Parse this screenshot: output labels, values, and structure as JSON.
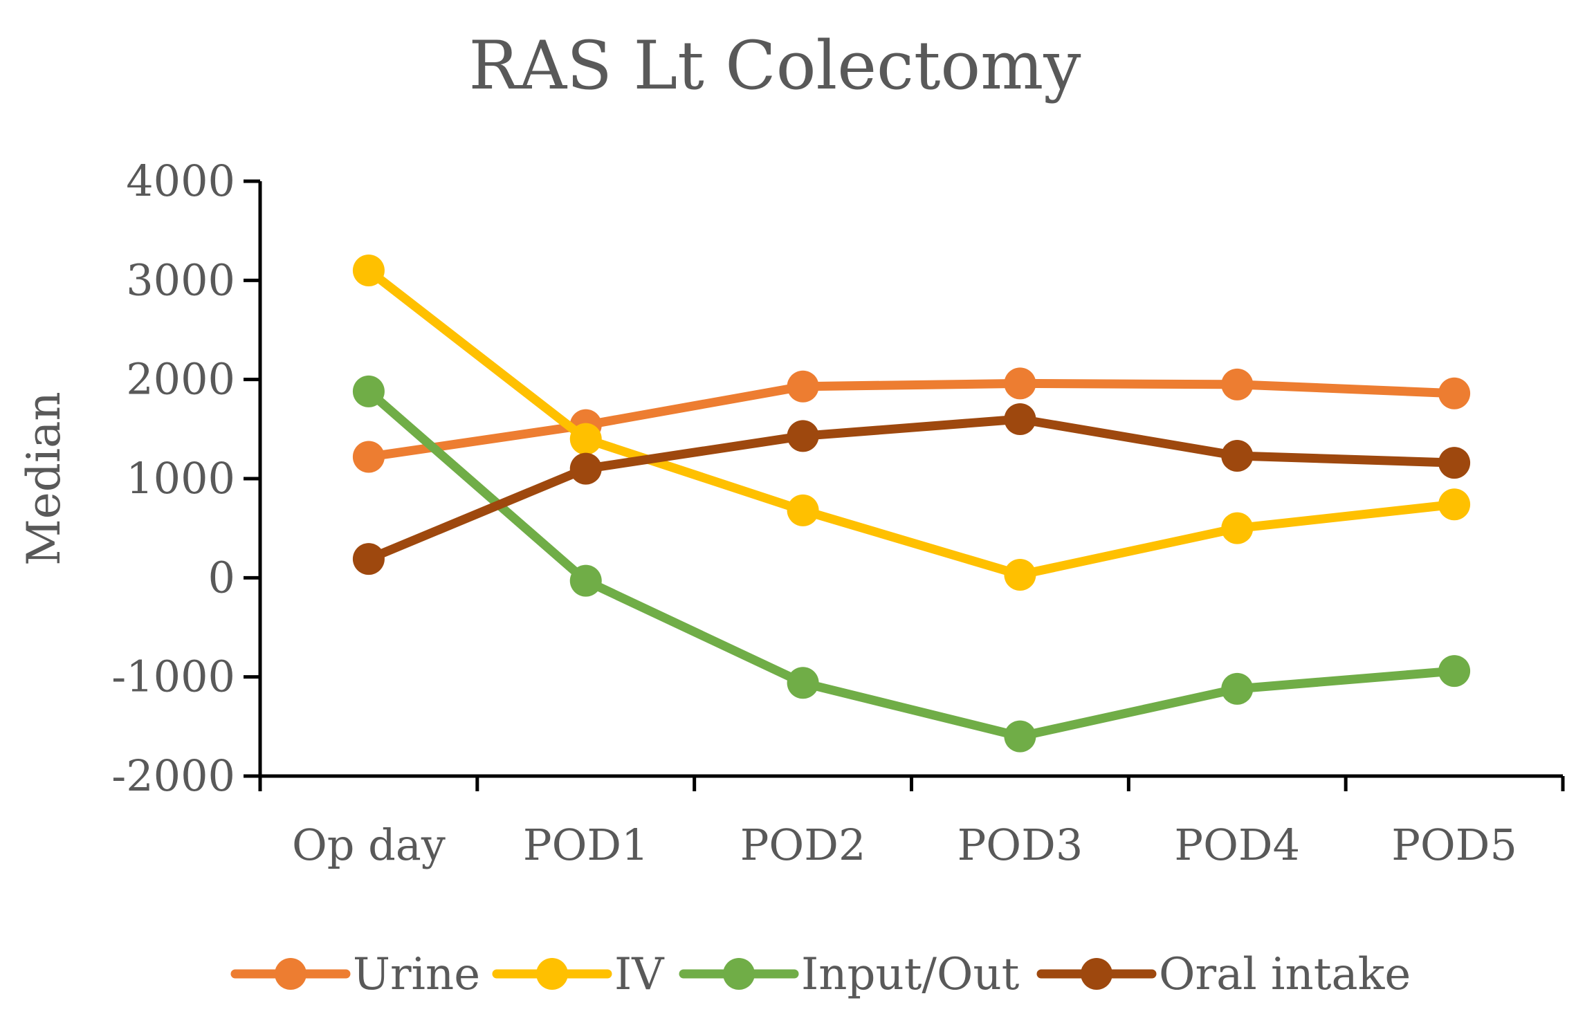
{
  "chart_data": {
    "type": "line",
    "title": "RAS Lt Colectomy",
    "xlabel": "",
    "ylabel": "Median",
    "categories": [
      "Op day",
      "POD1",
      "POD2",
      "POD3",
      "POD4",
      "POD5"
    ],
    "ylim": [
      -2000,
      4000
    ],
    "yticks": [
      4000,
      3000,
      2000,
      1000,
      0,
      -1000,
      -2000
    ],
    "grid": false,
    "legend_position": "bottom",
    "series": [
      {
        "name": "Urine",
        "color": "#ED7D31",
        "values": [
          1220,
          1540,
          1930,
          1960,
          1950,
          1860
        ]
      },
      {
        "name": "IV",
        "color": "#FFC000",
        "values": [
          3100,
          1400,
          680,
          30,
          500,
          740
        ]
      },
      {
        "name": "Input/Out",
        "color": "#70AD47",
        "values": [
          1880,
          -30,
          -1060,
          -1600,
          -1120,
          -940
        ]
      },
      {
        "name": "Oral intake",
        "color": "#9E480E",
        "values": [
          190,
          1100,
          1430,
          1600,
          1230,
          1160
        ]
      }
    ]
  }
}
